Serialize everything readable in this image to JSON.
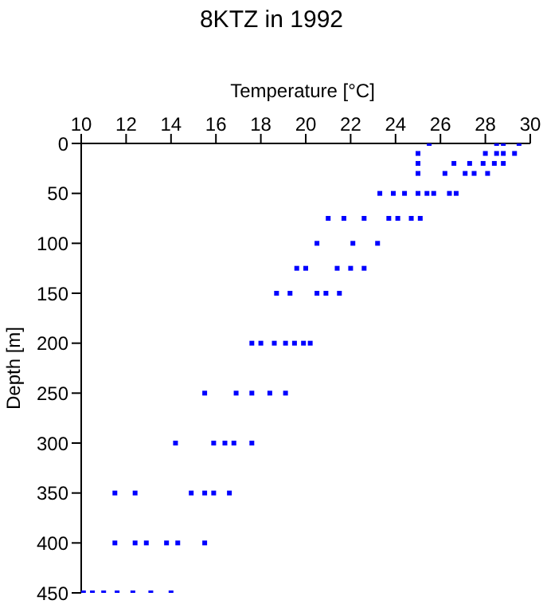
{
  "chart_data": {
    "type": "scatter",
    "title": "8KTZ in 1992",
    "xlabel": "Temperature [°C]",
    "ylabel": "Depth [m]",
    "xlim": [
      10,
      30
    ],
    "xticks": [
      10,
      12,
      14,
      16,
      18,
      20,
      22,
      24,
      26,
      28,
      30
    ],
    "ylim": [
      450,
      0
    ],
    "yticks": [
      0,
      50,
      100,
      150,
      200,
      250,
      300,
      350,
      400,
      450
    ],
    "grid": false,
    "marker": "square",
    "series": [
      {
        "color": "#0000ff",
        "x": [
          25.5,
          28.5,
          28.8,
          29.5,
          25.0,
          28.0,
          28.5,
          28.8,
          29.3,
          25.0,
          26.6,
          27.3,
          27.9,
          28.4,
          28.8,
          25.0,
          26.2,
          27.1,
          27.5,
          28.1,
          23.3,
          23.9,
          24.4,
          25.0,
          25.4,
          25.7,
          26.4,
          26.7,
          21.0,
          21.7,
          22.6,
          23.7,
          24.1,
          24.7,
          25.1,
          20.5,
          22.1,
          23.2,
          19.6,
          20.0,
          21.4,
          22.0,
          22.6,
          18.7,
          19.3,
          20.5,
          20.9,
          21.5,
          17.6,
          18.0,
          18.6,
          19.1,
          19.5,
          19.9,
          20.2,
          15.5,
          16.9,
          17.6,
          18.4,
          19.1,
          14.2,
          15.9,
          16.4,
          16.8,
          17.6,
          11.5,
          12.4,
          14.9,
          15.5,
          15.9,
          16.6,
          11.5,
          12.4,
          12.9,
          13.8,
          14.3,
          15.5,
          10.1,
          10.5,
          11.0,
          11.6,
          12.3,
          13.1,
          14.0
        ],
        "values": [
          0,
          0,
          0,
          0,
          10,
          10,
          10,
          10,
          10,
          20,
          20,
          20,
          20,
          20,
          20,
          30,
          30,
          30,
          30,
          30,
          50,
          50,
          50,
          50,
          50,
          50,
          50,
          50,
          75,
          75,
          75,
          75,
          75,
          75,
          75,
          100,
          100,
          100,
          125,
          125,
          125,
          125,
          125,
          150,
          150,
          150,
          150,
          150,
          200,
          200,
          200,
          200,
          200,
          200,
          200,
          250,
          250,
          250,
          250,
          250,
          300,
          300,
          300,
          300,
          300,
          350,
          350,
          350,
          350,
          350,
          350,
          400,
          400,
          400,
          400,
          400,
          400,
          450,
          450,
          450,
          450,
          450,
          450,
          450
        ]
      }
    ]
  }
}
